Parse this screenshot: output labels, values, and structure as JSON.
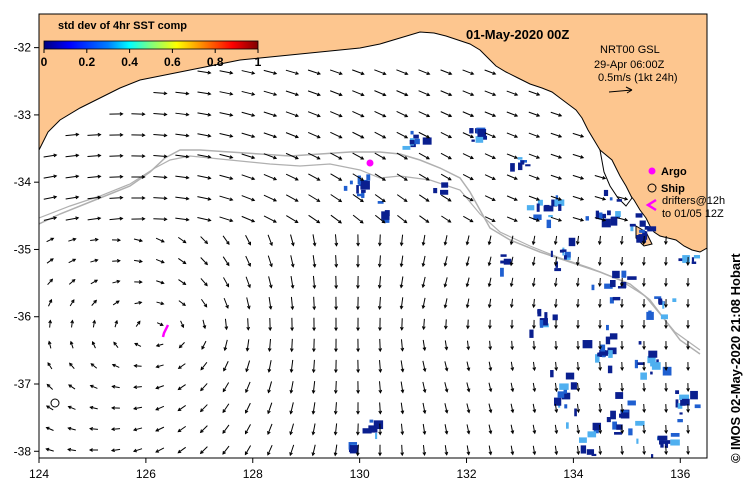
{
  "map": {
    "date_title": "01-May-2020 00Z",
    "legend": {
      "title": "std dev of 4hr SST comp",
      "ticks": [
        "0",
        "0.2",
        "0.4",
        "0.6",
        "0.8",
        "1"
      ],
      "colors": [
        "#00007f",
        "#0000ff",
        "#007fff",
        "#00ffff",
        "#7fff7f",
        "#ffff00",
        "#ff7f00",
        "#ff0000",
        "#7f0000"
      ]
    },
    "info": {
      "line1": "NRT00 GSL",
      "line2": "29-Apr 06:00Z",
      "line3": "0.5m/s (1kt 24h)"
    },
    "key": {
      "argo_label": "Argo",
      "ship_label": "Ship",
      "drifters_line1": "drifters@12h",
      "drifters_line2": "to 01/05 12Z",
      "argo_color": "#ff00ff",
      "drifter_color": "#ff00ff"
    },
    "credit": "IMOS 02-May-2020 21:08 Hobart",
    "copyright_symbol": "©",
    "colors": {
      "land": "#fdc68f",
      "coastline": "#000000",
      "isobath": "#b0b0b0",
      "arrow": "#000000",
      "sst_dark": "#0a1f8f",
      "sst_mid": "#1f5fd0",
      "sst_light": "#4fb0f0"
    },
    "x_axis": {
      "range": [
        124,
        136.5
      ],
      "ticks": [
        "124",
        "126",
        "128",
        "130",
        "132",
        "134",
        "136"
      ]
    },
    "y_axis": {
      "range": [
        -38.1,
        -31.5
      ],
      "ticks": [
        "-32",
        "-33",
        "-34",
        "-35",
        "-36",
        "-37",
        "-38"
      ]
    },
    "argo_float": {
      "lon": 130.2,
      "lat": -33.55
    },
    "ship_position": {
      "lon": 124.3,
      "lat": -37.2
    }
  }
}
